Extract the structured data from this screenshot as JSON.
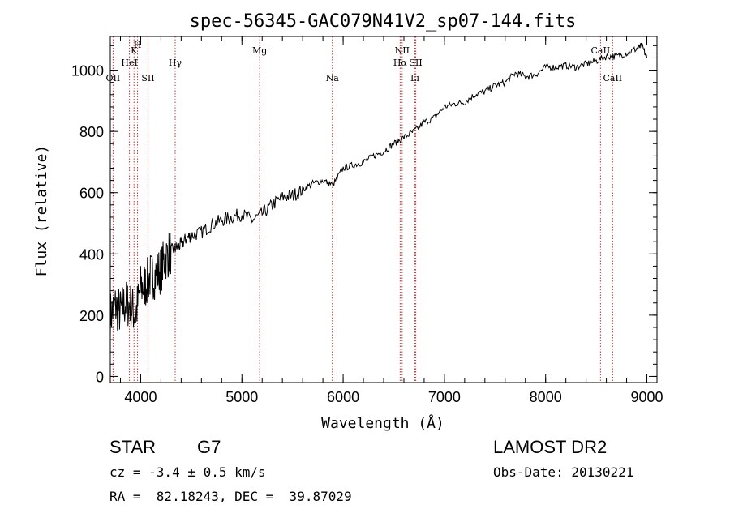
{
  "chart_data": {
    "type": "line",
    "title": "spec-56345-GAC079N41V2_sp07-144.fits",
    "xlabel": "Wavelength (Å)",
    "ylabel": "Flux (relative)",
    "xlim": [
      3700,
      9100
    ],
    "ylim": [
      -20,
      1110
    ],
    "x_ticks": [
      4000,
      5000,
      6000,
      7000,
      8000,
      9000
    ],
    "y_ticks": [
      0,
      200,
      400,
      600,
      800,
      1000
    ],
    "grid": false,
    "line_color": "#000000",
    "marker_color": "#cc3333",
    "lines": [
      {
        "label": "OII",
        "wavelength": 3727,
        "row": 3
      },
      {
        "label": "K",
        "wavelength": 3934,
        "row": 1
      },
      {
        "label": "HeI",
        "wavelength": 3889,
        "row": 2
      },
      {
        "label": "H",
        "wavelength": 3969,
        "row": 0
      },
      {
        "label": "SII",
        "wavelength": 4072,
        "row": 3
      },
      {
        "label": "Hγ",
        "wavelength": 4341,
        "row": 2
      },
      {
        "label": "Mg",
        "wavelength": 5175,
        "row": 1
      },
      {
        "label": "Na",
        "wavelength": 5893,
        "row": 3
      },
      {
        "label": "NII",
        "wavelength": 6583,
        "row": 1
      },
      {
        "label": "Hα",
        "wavelength": 6563,
        "row": 2
      },
      {
        "label": "SII",
        "wavelength": 6717,
        "row": 2
      },
      {
        "label": "Li",
        "wavelength": 6708,
        "row": 3
      },
      {
        "label": "CaII",
        "wavelength": 8542,
        "row": 1
      },
      {
        "label": "CaII",
        "wavelength": 8662,
        "row": 3
      }
    ],
    "series": [
      {
        "x": [
          3700,
          3750,
          3800,
          3850,
          3900,
          3950,
          4000,
          4050,
          4100,
          4150,
          4200,
          4250,
          4300,
          4350,
          4400,
          4450,
          4500,
          4600,
          4700,
          4800,
          4900,
          5000,
          5100,
          5200,
          5300,
          5400,
          5500,
          5600,
          5700,
          5800,
          5900,
          6000,
          6100,
          6200,
          6300,
          6400,
          6500,
          6600,
          6700,
          6800,
          6900,
          7000,
          7100,
          7200,
          7300,
          7400,
          7500,
          7600,
          7700,
          7800,
          7900,
          8000,
          8100,
          8200,
          8300,
          8400,
          8500,
          8600,
          8700,
          8800,
          8900,
          8950,
          9000
        ],
        "y": [
          200,
          230,
          210,
          240,
          230,
          200,
          290,
          300,
          330,
          330,
          350,
          390,
          410,
          420,
          430,
          450,
          460,
          470,
          495,
          510,
          520,
          530,
          510,
          530,
          560,
          585,
          590,
          610,
          630,
          640,
          625,
          680,
          690,
          700,
          720,
          735,
          760,
          780,
          800,
          830,
          845,
          880,
          890,
          895,
          920,
          930,
          950,
          960,
          990,
          980,
          985,
          1010,
          1010,
          1015,
          1010,
          1020,
          1030,
          1045,
          1045,
          1055,
          1070,
          1080,
          1040
        ]
      }
    ]
  },
  "info": {
    "object_class": "STAR",
    "subclass": "G7",
    "survey": "LAMOST DR2",
    "redshift": "cz = -3.4 ± 0.5 km/s",
    "obs_date": "Obs-Date: 20130221",
    "coords": "RA =  82.18243, DEC =  39.87029"
  }
}
